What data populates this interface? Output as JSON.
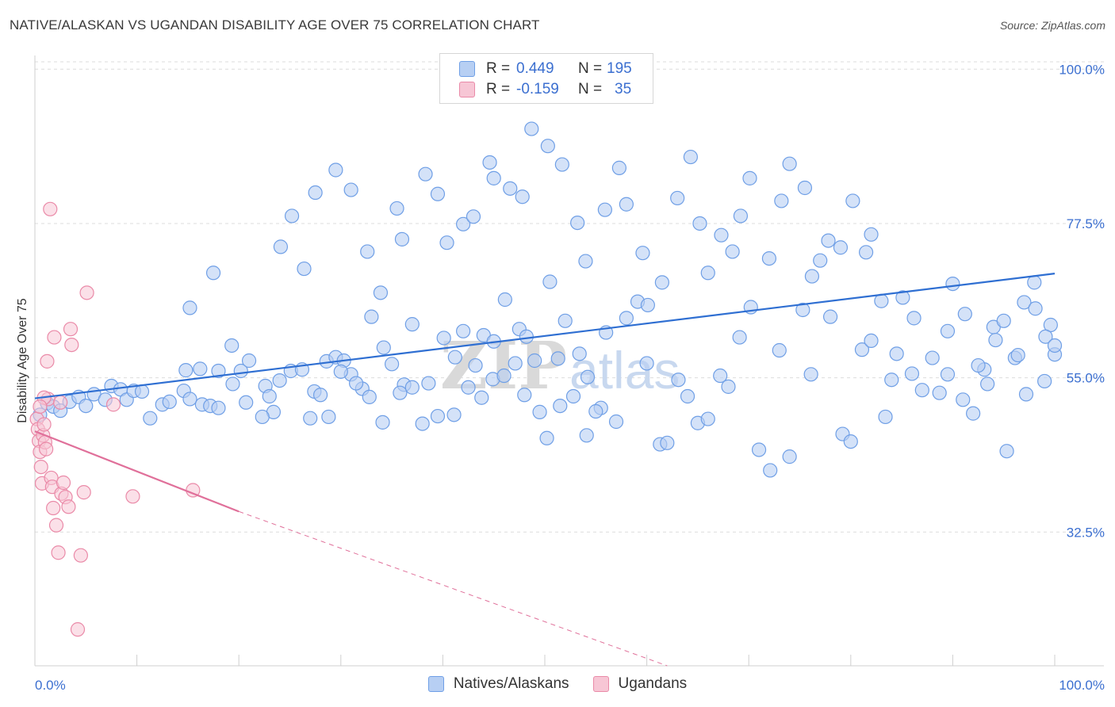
{
  "title": "NATIVE/ALASKAN VS UGANDAN DISABILITY AGE OVER 75 CORRELATION CHART",
  "source": "Source: ZipAtlas.com",
  "watermark": {
    "zip": "ZIP",
    "atlas": "atlas"
  },
  "colors": {
    "blue": "#6f9fe6",
    "blue_fill": "#b7cff3",
    "blue_line": "#2f6fd2",
    "pink": "#ea8aa8",
    "pink_fill": "#f7c6d5",
    "pink_line": "#e0709a",
    "axis_text": "#3b6fd0",
    "grid": "#dcdcdc"
  },
  "legend": {
    "rows": [
      {
        "r_label": "R =",
        "r_value": "0.449",
        "n_label": "N =",
        "n_value": "195"
      },
      {
        "r_label": "R =",
        "r_value": "-0.159",
        "n_label": "N =",
        "n_value": "35"
      }
    ]
  },
  "bottom_legend": [
    "Natives/Alaskans",
    "Ugandans"
  ],
  "chart_data": {
    "type": "scatter",
    "title": "NATIVE/ALASKAN VS UGANDAN DISABILITY AGE OVER 75 CORRELATION CHART",
    "xlabel": "",
    "ylabel": "Disability Age Over 75",
    "xlim": [
      0,
      100
    ],
    "ylim": [
      13,
      102
    ],
    "x_tick_labels": [
      "0.0%",
      "100.0%"
    ],
    "y_ticks": [
      32.5,
      55.0,
      77.5,
      100.0
    ],
    "y_tick_labels": [
      "32.5%",
      "55.0%",
      "77.5%",
      "100.0%"
    ],
    "grid": "horizontal dashed",
    "series": [
      {
        "name": "Natives/Alaskans",
        "R": 0.449,
        "N": 195,
        "trend": {
          "x": [
            0,
            100
          ],
          "y": [
            52.0,
            70.2
          ],
          "style": "solid"
        },
        "points": [
          [
            0.5,
            49.6
          ],
          [
            1.2,
            51.3
          ],
          [
            1.8,
            50.8
          ],
          [
            2.5,
            50.2
          ],
          [
            3.4,
            51.5
          ],
          [
            4.3,
            52.2
          ],
          [
            5.0,
            50.9
          ],
          [
            5.8,
            52.6
          ],
          [
            6.9,
            51.8
          ],
          [
            7.5,
            53.8
          ],
          [
            8.4,
            53.3
          ],
          [
            9.0,
            51.8
          ],
          [
            9.7,
            53.1
          ],
          [
            10.5,
            53.0
          ],
          [
            11.3,
            49.1
          ],
          [
            12.5,
            51.1
          ],
          [
            13.2,
            51.5
          ],
          [
            14.6,
            53.1
          ],
          [
            15.2,
            51.9
          ],
          [
            16.4,
            51.1
          ],
          [
            17.2,
            50.9
          ],
          [
            18.0,
            56.0
          ],
          [
            19.3,
            59.7
          ],
          [
            20.2,
            56.0
          ],
          [
            21.0,
            57.5
          ],
          [
            22.6,
            53.8
          ],
          [
            23.4,
            50.0
          ],
          [
            24.0,
            54.6
          ],
          [
            25.1,
            56.0
          ],
          [
            26.2,
            56.2
          ],
          [
            27.4,
            53.0
          ],
          [
            28.6,
            57.4
          ],
          [
            29.5,
            58.0
          ],
          [
            30.3,
            57.5
          ],
          [
            31.0,
            55.5
          ],
          [
            32.1,
            53.4
          ],
          [
            33.0,
            63.9
          ],
          [
            34.2,
            59.4
          ],
          [
            35.0,
            57.0
          ],
          [
            36.2,
            54.0
          ],
          [
            37.0,
            62.8
          ],
          [
            38.6,
            54.2
          ],
          [
            40.1,
            60.8
          ],
          [
            41.2,
            58.0
          ],
          [
            42.0,
            61.8
          ],
          [
            43.2,
            56.8
          ],
          [
            44.0,
            61.2
          ],
          [
            45.0,
            60.3
          ],
          [
            46.1,
            66.4
          ],
          [
            47.5,
            62.1
          ],
          [
            48.2,
            61.0
          ],
          [
            49.0,
            57.5
          ],
          [
            50.5,
            69.0
          ],
          [
            51.3,
            57.8
          ],
          [
            52.0,
            63.3
          ],
          [
            53.4,
            58.5
          ],
          [
            54.2,
            55.1
          ],
          [
            55.5,
            50.6
          ],
          [
            56.0,
            61.6
          ],
          [
            57.0,
            48.6
          ],
          [
            58.0,
            63.7
          ],
          [
            59.1,
            66.1
          ],
          [
            60.0,
            57.1
          ],
          [
            61.3,
            45.3
          ],
          [
            62.0,
            45.5
          ],
          [
            63.1,
            54.7
          ],
          [
            64.0,
            52.3
          ],
          [
            65.0,
            48.4
          ],
          [
            66.0,
            49.0
          ],
          [
            67.2,
            55.3
          ],
          [
            68.0,
            53.7
          ],
          [
            69.1,
            60.9
          ],
          [
            70.2,
            65.3
          ],
          [
            71.0,
            44.5
          ],
          [
            72.1,
            41.5
          ],
          [
            73.0,
            59.0
          ],
          [
            74.0,
            43.5
          ],
          [
            75.3,
            64.9
          ],
          [
            76.1,
            55.5
          ],
          [
            77.0,
            72.1
          ],
          [
            78.0,
            63.9
          ],
          [
            79.2,
            46.8
          ],
          [
            80.0,
            45.7
          ],
          [
            81.1,
            59.1
          ],
          [
            82.0,
            60.4
          ],
          [
            83.4,
            49.3
          ],
          [
            84.0,
            54.7
          ],
          [
            85.1,
            66.7
          ],
          [
            86.2,
            63.7
          ],
          [
            87.0,
            53.2
          ],
          [
            88.0,
            57.9
          ],
          [
            89.5,
            61.8
          ],
          [
            90.0,
            68.7
          ],
          [
            91.2,
            64.3
          ],
          [
            92.0,
            49.8
          ],
          [
            93.1,
            56.2
          ],
          [
            94.0,
            62.4
          ],
          [
            95.3,
            44.3
          ],
          [
            96.1,
            57.9
          ],
          [
            97.0,
            66.0
          ],
          [
            98.0,
            68.9
          ],
          [
            99.0,
            54.5
          ],
          [
            99.6,
            62.7
          ],
          [
            100.0,
            58.4
          ],
          [
            15.2,
            65.2
          ],
          [
            17.5,
            70.3
          ],
          [
            24.1,
            74.1
          ],
          [
            25.2,
            78.6
          ],
          [
            26.4,
            70.9
          ],
          [
            27.5,
            82.0
          ],
          [
            29.5,
            85.3
          ],
          [
            31.0,
            82.4
          ],
          [
            32.6,
            73.4
          ],
          [
            33.9,
            67.4
          ],
          [
            35.5,
            79.7
          ],
          [
            36.0,
            75.2
          ],
          [
            38.3,
            84.7
          ],
          [
            39.5,
            81.8
          ],
          [
            40.4,
            74.7
          ],
          [
            42.0,
            77.4
          ],
          [
            43.0,
            78.5
          ],
          [
            44.6,
            86.4
          ],
          [
            45.0,
            84.1
          ],
          [
            46.6,
            82.6
          ],
          [
            47.8,
            81.4
          ],
          [
            48.7,
            91.3
          ],
          [
            50.3,
            88.8
          ],
          [
            51.7,
            86.1
          ],
          [
            53.2,
            77.6
          ],
          [
            54.0,
            72.0
          ],
          [
            55.9,
            79.5
          ],
          [
            57.3,
            85.6
          ],
          [
            58.0,
            80.3
          ],
          [
            59.6,
            73.2
          ],
          [
            60.1,
            65.6
          ],
          [
            61.5,
            68.9
          ],
          [
            63.0,
            81.2
          ],
          [
            64.3,
            87.2
          ],
          [
            65.2,
            77.5
          ],
          [
            66.0,
            70.3
          ],
          [
            67.3,
            75.8
          ],
          [
            68.4,
            73.4
          ],
          [
            69.2,
            78.6
          ],
          [
            70.1,
            84.1
          ],
          [
            72.0,
            72.4
          ],
          [
            73.2,
            80.8
          ],
          [
            74.0,
            86.2
          ],
          [
            75.5,
            82.7
          ],
          [
            76.2,
            69.8
          ],
          [
            77.8,
            75.0
          ],
          [
            79.0,
            74.0
          ],
          [
            80.2,
            80.8
          ],
          [
            81.5,
            73.3
          ],
          [
            82.0,
            75.9
          ],
          [
            83.0,
            66.2
          ],
          [
            84.5,
            58.5
          ],
          [
            86.0,
            55.6
          ],
          [
            88.7,
            52.8
          ],
          [
            89.5,
            55.5
          ],
          [
            91.0,
            51.8
          ],
          [
            92.5,
            56.8
          ],
          [
            93.4,
            54.1
          ],
          [
            94.2,
            60.5
          ],
          [
            95.0,
            63.3
          ],
          [
            96.4,
            58.3
          ],
          [
            97.2,
            52.6
          ],
          [
            98.1,
            65.1
          ],
          [
            99.1,
            61.0
          ],
          [
            100.0,
            59.7
          ],
          [
            14.8,
            56.1
          ],
          [
            16.2,
            56.3
          ],
          [
            18.0,
            50.6
          ],
          [
            19.4,
            54.1
          ],
          [
            20.7,
            51.4
          ],
          [
            22.3,
            49.3
          ],
          [
            23.0,
            52.3
          ],
          [
            27.0,
            49.1
          ],
          [
            28.0,
            52.5
          ],
          [
            28.8,
            49.3
          ],
          [
            30.0,
            55.9
          ],
          [
            31.5,
            54.2
          ],
          [
            32.8,
            52.2
          ],
          [
            34.1,
            48.5
          ],
          [
            35.8,
            52.8
          ],
          [
            37.0,
            53.6
          ],
          [
            38.0,
            48.3
          ],
          [
            39.5,
            49.4
          ],
          [
            41.1,
            49.6
          ],
          [
            42.5,
            53.6
          ],
          [
            43.8,
            52.1
          ],
          [
            44.9,
            54.8
          ],
          [
            46.0,
            55.3
          ],
          [
            47.1,
            57.1
          ],
          [
            48.0,
            52.5
          ],
          [
            49.5,
            50.0
          ],
          [
            50.2,
            46.2
          ],
          [
            51.5,
            50.9
          ],
          [
            52.8,
            52.3
          ],
          [
            54.1,
            46.6
          ],
          [
            55.0,
            50.1
          ]
        ]
      },
      {
        "name": "Ugandans",
        "R": -0.159,
        "N": 35,
        "trend": {
          "x": [
            0,
            20
          ],
          "y": [
            47.2,
            35.5
          ],
          "style": "solid"
        },
        "trend_extension": {
          "x": [
            20,
            62
          ],
          "y": [
            35.5,
            13.0
          ],
          "style": "dashed"
        },
        "points": [
          [
            0.2,
            49.0
          ],
          [
            0.3,
            47.5
          ],
          [
            0.4,
            45.8
          ],
          [
            0.5,
            44.2
          ],
          [
            0.6,
            42.0
          ],
          [
            0.7,
            39.6
          ],
          [
            0.8,
            46.6
          ],
          [
            0.9,
            48.2
          ],
          [
            1.0,
            45.6
          ],
          [
            1.1,
            44.6
          ],
          [
            1.2,
            57.4
          ],
          [
            1.3,
            51.9
          ],
          [
            1.5,
            79.6
          ],
          [
            1.6,
            40.4
          ],
          [
            1.7,
            39.1
          ],
          [
            1.8,
            36.0
          ],
          [
            1.9,
            60.9
          ],
          [
            2.1,
            33.5
          ],
          [
            2.3,
            29.5
          ],
          [
            2.5,
            51.4
          ],
          [
            2.6,
            38.1
          ],
          [
            2.8,
            39.7
          ],
          [
            3.0,
            37.6
          ],
          [
            3.3,
            36.2
          ],
          [
            3.5,
            62.1
          ],
          [
            3.6,
            59.8
          ],
          [
            4.2,
            18.3
          ],
          [
            4.5,
            29.1
          ],
          [
            4.8,
            38.3
          ],
          [
            5.1,
            67.4
          ],
          [
            7.7,
            51.1
          ],
          [
            9.6,
            37.7
          ],
          [
            15.5,
            38.6
          ],
          [
            0.9,
            52.1
          ],
          [
            0.5,
            50.8
          ]
        ]
      }
    ]
  }
}
